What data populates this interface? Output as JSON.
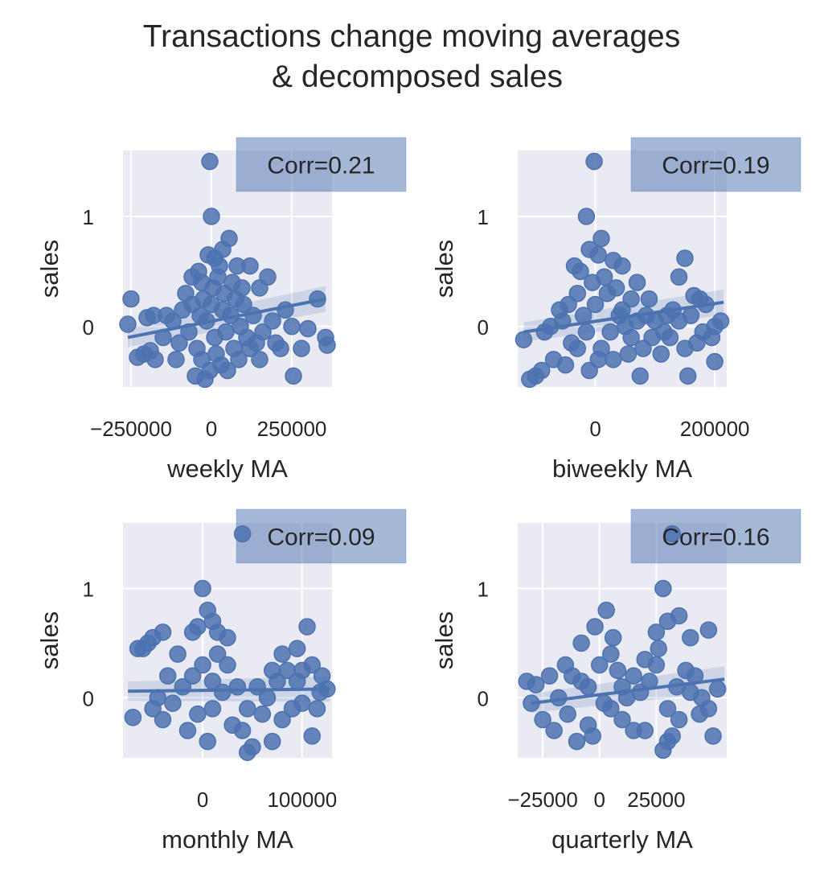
{
  "figure": {
    "title_lines": [
      "Transactions change moving averages",
      "& decomposed sales"
    ]
  },
  "style": {
    "point_color": "#4C72B0",
    "panel_bg": "#EAEAF2",
    "grid_color": "#FFFFFF",
    "corr_box_color": "#4C72B0"
  },
  "chart_data": [
    {
      "type": "scatter",
      "xlabel": "weekly MA",
      "ylabel": "sales",
      "annotation": "Corr=0.21",
      "xlim": [
        -275000,
        375000
      ],
      "ylim": [
        -0.55,
        1.6
      ],
      "xticks": [
        -250000,
        0,
        250000
      ],
      "xtick_labels": [
        "−250000",
        "0",
        "250000"
      ],
      "yticks": [
        0,
        1
      ],
      "ytick_labels": [
        "0",
        "1"
      ],
      "regression": {
        "x": [
          -260000,
          355000
        ],
        "y": [
          -0.1,
          0.25
        ]
      },
      "points": [
        [
          -5000,
          1.5
        ],
        [
          0,
          1.0
        ],
        [
          55000,
          0.8
        ],
        [
          35000,
          0.7
        ],
        [
          -10000,
          0.65
        ],
        [
          10000,
          0.62
        ],
        [
          80000,
          0.55
        ],
        [
          120000,
          0.55
        ],
        [
          175000,
          0.45
        ],
        [
          -30000,
          0.4
        ],
        [
          150000,
          0.35
        ],
        [
          330000,
          0.25
        ],
        [
          -250000,
          0.25
        ],
        [
          -180000,
          0.1
        ],
        [
          -140000,
          0.1
        ],
        [
          -200000,
          0.08
        ],
        [
          -260000,
          0.02
        ],
        [
          250000,
          0.0
        ],
        [
          300000,
          -0.02
        ],
        [
          -210000,
          -0.25
        ],
        [
          -190000,
          -0.22
        ],
        [
          -230000,
          -0.28
        ],
        [
          -175000,
          -0.3
        ],
        [
          355000,
          -0.1
        ],
        [
          360000,
          -0.17
        ],
        [
          215000,
          -0.2
        ],
        [
          280000,
          -0.2
        ],
        [
          150000,
          -0.3
        ],
        [
          255000,
          -0.45
        ],
        [
          -50000,
          -0.45
        ],
        [
          -20000,
          -0.48
        ],
        [
          -100000,
          -0.15
        ],
        [
          -80000,
          0.3
        ],
        [
          -60000,
          0.2
        ],
        [
          -40000,
          0.5
        ],
        [
          20000,
          0.45
        ],
        [
          40000,
          0.3
        ],
        [
          60000,
          0.1
        ],
        [
          90000,
          0.0
        ],
        [
          110000,
          -0.1
        ],
        [
          70000,
          -0.2
        ],
        [
          30000,
          -0.35
        ],
        [
          -30000,
          -0.3
        ],
        [
          -70000,
          -0.05
        ],
        [
          -90000,
          0.15
        ],
        [
          0,
          0.2
        ],
        [
          10000,
          -0.1
        ],
        [
          -15000,
          0.05
        ],
        [
          45000,
          -0.05
        ],
        [
          100000,
          0.2
        ],
        [
          130000,
          0.1
        ],
        [
          160000,
          -0.05
        ],
        [
          190000,
          0.05
        ],
        [
          -120000,
          0.05
        ],
        [
          -150000,
          -0.1
        ],
        [
          5000,
          0.35
        ],
        [
          25000,
          0.55
        ],
        [
          -25000,
          0.25
        ],
        [
          65000,
          0.4
        ],
        [
          85000,
          -0.3
        ],
        [
          -45000,
          -0.2
        ],
        [
          15000,
          -0.25
        ],
        [
          -5000,
          -0.4
        ],
        [
          50000,
          -0.4
        ],
        [
          200000,
          -0.15
        ],
        [
          230000,
          0.15
        ],
        [
          -110000,
          -0.3
        ],
        [
          120000,
          -0.2
        ],
        [
          -60000,
          0.45
        ],
        [
          35000,
          0.15
        ],
        [
          75000,
          0.25
        ],
        [
          -35000,
          0.1
        ],
        [
          95000,
          0.35
        ],
        [
          140000,
          -0.15
        ]
      ]
    },
    {
      "type": "scatter",
      "xlabel": "biweekly MA",
      "ylabel": "sales",
      "annotation": "Corr=0.19",
      "xlim": [
        -130000,
        220000
      ],
      "ylim": [
        -0.55,
        1.6
      ],
      "xticks": [
        0,
        200000
      ],
      "xtick_labels": [
        "0",
        "200000"
      ],
      "yticks": [
        0,
        1
      ],
      "ytick_labels": [
        "0",
        "1"
      ],
      "regression": {
        "x": [
          -120000,
          215000
        ],
        "y": [
          -0.05,
          0.22
        ]
      },
      "points": [
        [
          -2000,
          1.5
        ],
        [
          -15000,
          1.0
        ],
        [
          10000,
          0.8
        ],
        [
          -10000,
          0.7
        ],
        [
          5000,
          0.65
        ],
        [
          30000,
          0.6
        ],
        [
          45000,
          0.55
        ],
        [
          70000,
          0.4
        ],
        [
          150000,
          0.62
        ],
        [
          140000,
          0.45
        ],
        [
          -35000,
          0.55
        ],
        [
          -25000,
          0.5
        ],
        [
          185000,
          0.2
        ],
        [
          165000,
          0.28
        ],
        [
          175000,
          0.25
        ],
        [
          210000,
          0.05
        ],
        [
          200000,
          0.0
        ],
        [
          195000,
          -0.1
        ],
        [
          170000,
          -0.15
        ],
        [
          150000,
          -0.2
        ],
        [
          155000,
          -0.45
        ],
        [
          200000,
          -0.32
        ],
        [
          -110000,
          -0.48
        ],
        [
          -100000,
          -0.45
        ],
        [
          -90000,
          -0.4
        ],
        [
          -85000,
          -0.05
        ],
        [
          -75000,
          0.0
        ],
        [
          -60000,
          0.15
        ],
        [
          -45000,
          0.2
        ],
        [
          -30000,
          0.3
        ],
        [
          -20000,
          0.1
        ],
        [
          0,
          0.2
        ],
        [
          20000,
          0.3
        ],
        [
          40000,
          0.1
        ],
        [
          60000,
          -0.1
        ],
        [
          80000,
          -0.2
        ],
        [
          100000,
          0.05
        ],
        [
          120000,
          0.1
        ],
        [
          125000,
          -0.1
        ],
        [
          -70000,
          -0.3
        ],
        [
          -50000,
          -0.35
        ],
        [
          -10000,
          -0.4
        ],
        [
          10000,
          -0.2
        ],
        [
          30000,
          -0.3
        ],
        [
          50000,
          0.0
        ],
        [
          75000,
          -0.45
        ],
        [
          -120000,
          -0.12
        ],
        [
          -40000,
          -0.15
        ],
        [
          15000,
          0.45
        ],
        [
          35000,
          0.35
        ],
        [
          60000,
          0.25
        ],
        [
          90000,
          0.25
        ],
        [
          110000,
          -0.25
        ],
        [
          130000,
          0.15
        ],
        [
          -5000,
          0.4
        ],
        [
          25000,
          -0.05
        ],
        [
          45000,
          0.15
        ],
        [
          -55000,
          0.05
        ],
        [
          70000,
          0.05
        ],
        [
          95000,
          -0.1
        ],
        [
          -15000,
          -0.05
        ],
        [
          5000,
          -0.3
        ],
        [
          -30000,
          -0.2
        ],
        [
          55000,
          -0.25
        ],
        [
          85000,
          0.1
        ],
        [
          115000,
          -0.05
        ],
        [
          140000,
          0.05
        ],
        [
          160000,
          0.1
        ],
        [
          180000,
          -0.05
        ]
      ]
    },
    {
      "type": "scatter",
      "xlabel": "monthly MA",
      "ylabel": "sales",
      "annotation": "Corr=0.09",
      "xlim": [
        -80000,
        130000
      ],
      "ylim": [
        -0.55,
        1.6
      ],
      "xticks": [
        0,
        100000
      ],
      "xtick_labels": [
        "0",
        "100000"
      ],
      "yticks": [
        0,
        1
      ],
      "ytick_labels": [
        "0",
        "1"
      ],
      "regression": {
        "x": [
          -75000,
          128000
        ],
        "y": [
          0.06,
          0.08
        ]
      },
      "points": [
        [
          40000,
          1.5
        ],
        [
          0,
          1.0
        ],
        [
          5000,
          0.8
        ],
        [
          10000,
          0.7
        ],
        [
          -5000,
          0.65
        ],
        [
          15000,
          0.6
        ],
        [
          25000,
          0.55
        ],
        [
          -10000,
          0.6
        ],
        [
          -40000,
          0.6
        ],
        [
          -50000,
          0.55
        ],
        [
          -60000,
          0.45
        ],
        [
          -65000,
          0.45
        ],
        [
          -55000,
          0.5
        ],
        [
          105000,
          0.65
        ],
        [
          95000,
          0.45
        ],
        [
          80000,
          0.4
        ],
        [
          110000,
          0.3
        ],
        [
          100000,
          0.25
        ],
        [
          120000,
          0.2
        ],
        [
          118000,
          0.05
        ],
        [
          125000,
          0.08
        ],
        [
          115000,
          -0.1
        ],
        [
          100000,
          -0.05
        ],
        [
          110000,
          -0.35
        ],
        [
          80000,
          -0.2
        ],
        [
          70000,
          -0.4
        ],
        [
          50000,
          -0.45
        ],
        [
          45000,
          -0.5
        ],
        [
          -70000,
          -0.18
        ],
        [
          -50000,
          -0.1
        ],
        [
          -40000,
          -0.2
        ],
        [
          -30000,
          -0.05
        ],
        [
          -20000,
          0.1
        ],
        [
          -10000,
          0.2
        ],
        [
          0,
          0.3
        ],
        [
          10000,
          -0.1
        ],
        [
          20000,
          0.05
        ],
        [
          30000,
          -0.25
        ],
        [
          40000,
          -0.3
        ],
        [
          60000,
          -0.15
        ],
        [
          65000,
          0.0
        ],
        [
          75000,
          0.15
        ],
        [
          85000,
          0.25
        ],
        [
          90000,
          -0.1
        ],
        [
          -25000,
          0.4
        ],
        [
          -15000,
          -0.3
        ],
        [
          5000,
          -0.4
        ],
        [
          15000,
          0.4
        ],
        [
          25000,
          0.3
        ],
        [
          35000,
          0.1
        ],
        [
          -5000,
          -0.15
        ],
        [
          55000,
          0.1
        ],
        [
          -35000,
          0.2
        ],
        [
          10000,
          0.15
        ],
        [
          45000,
          -0.1
        ],
        [
          -45000,
          0.0
        ],
        [
          70000,
          0.25
        ],
        [
          95000,
          0.15
        ]
      ]
    },
    {
      "type": "scatter",
      "xlabel": "quarterly MA",
      "ylabel": "sales",
      "annotation": "Corr=0.16",
      "xlim": [
        -36000,
        56000
      ],
      "ylim": [
        -0.55,
        1.6
      ],
      "xticks": [
        -25000,
        0,
        25000
      ],
      "xtick_labels": [
        "−25000",
        "0",
        "25000"
      ],
      "yticks": [
        0,
        1
      ],
      "ytick_labels": [
        "0",
        "1"
      ],
      "regression": {
        "x": [
          -30000,
          55000
        ],
        "y": [
          -0.05,
          0.17
        ]
      },
      "points": [
        [
          32000,
          1.5
        ],
        [
          28000,
          1.0
        ],
        [
          3000,
          0.8
        ],
        [
          35000,
          0.75
        ],
        [
          30000,
          0.7
        ],
        [
          25000,
          0.6
        ],
        [
          40000,
          0.55
        ],
        [
          48000,
          0.62
        ],
        [
          -2000,
          0.65
        ],
        [
          -8000,
          0.5
        ],
        [
          -15000,
          0.3
        ],
        [
          -22000,
          0.2
        ],
        [
          -28000,
          0.12
        ],
        [
          -32000,
          0.15
        ],
        [
          -30000,
          -0.05
        ],
        [
          -25000,
          -0.2
        ],
        [
          -20000,
          -0.3
        ],
        [
          -10000,
          -0.4
        ],
        [
          -5000,
          -0.25
        ],
        [
          5000,
          -0.1
        ],
        [
          10000,
          0.1
        ],
        [
          15000,
          0.2
        ],
        [
          20000,
          0.35
        ],
        [
          25000,
          0.3
        ],
        [
          30000,
          -0.1
        ],
        [
          35000,
          -0.2
        ],
        [
          30000,
          -0.4
        ],
        [
          28000,
          -0.48
        ],
        [
          32000,
          -0.35
        ],
        [
          20000,
          -0.3
        ],
        [
          40000,
          0.05
        ],
        [
          45000,
          0.0
        ],
        [
          52000,
          0.08
        ],
        [
          48000,
          -0.1
        ],
        [
          50000,
          -0.35
        ],
        [
          38000,
          0.25
        ],
        [
          -18000,
          0.0
        ],
        [
          -12000,
          0.2
        ],
        [
          -5000,
          0.1
        ],
        [
          0,
          0.3
        ],
        [
          5000,
          0.4
        ],
        [
          10000,
          -0.2
        ],
        [
          15000,
          -0.3
        ],
        [
          -3000,
          -0.35
        ],
        [
          8000,
          0.25
        ],
        [
          12000,
          0.0
        ],
        [
          22000,
          0.15
        ],
        [
          42000,
          0.2
        ],
        [
          -14000,
          -0.15
        ],
        [
          2000,
          -0.05
        ],
        [
          18000,
          0.05
        ],
        [
          26000,
          0.45
        ],
        [
          -8000,
          0.15
        ],
        [
          34000,
          0.1
        ],
        [
          44000,
          -0.15
        ],
        [
          6000,
          0.55
        ]
      ]
    }
  ]
}
